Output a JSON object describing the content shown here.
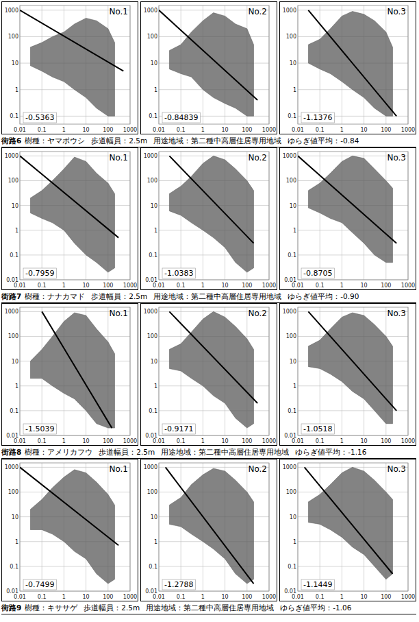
{
  "chart_data": [
    {
      "type": "line",
      "title": "No.1",
      "log": true,
      "grid": true,
      "xlim": [
        0.01,
        1000
      ],
      "ylim": [
        0.05,
        1500
      ],
      "xticks": [
        0.01,
        0.1,
        1,
        10,
        100,
        1000
      ],
      "yticks": [
        0.1,
        1,
        10,
        100,
        1000
      ],
      "spectrum": {
        "x": [
          0.03,
          0.1,
          0.3,
          1,
          3,
          10,
          30,
          100,
          200
        ],
        "upper": [
          40,
          60,
          100,
          150,
          300,
          500,
          400,
          200,
          60
        ],
        "lower": [
          8,
          5,
          3,
          2,
          1,
          0.5,
          0.2,
          0.1,
          0.1
        ],
        "color": "#5a5a5a"
      },
      "fit": {
        "x": [
          0.01,
          500
        ],
        "y": [
          1000,
          5
        ],
        "color": "#000000"
      },
      "slope": -0.5363
    },
    {
      "type": "line",
      "title": "No.2",
      "log": true,
      "grid": true,
      "xlim": [
        0.01,
        1000
      ],
      "ylim": [
        0.05,
        1500
      ],
      "xticks": [
        0.01,
        0.1,
        1,
        10,
        100,
        1000
      ],
      "yticks": [
        0.1,
        1,
        10,
        100,
        1000
      ],
      "spectrum": {
        "x": [
          0.03,
          0.1,
          0.3,
          1,
          3,
          10,
          30,
          100,
          200
        ],
        "upper": [
          30,
          50,
          150,
          400,
          800,
          600,
          300,
          200,
          50
        ],
        "lower": [
          6,
          4,
          3,
          1,
          0.5,
          0.3,
          0.2,
          0.1,
          0.1
        ],
        "color": "#5a5a5a"
      },
      "fit": {
        "x": [
          0.01,
          300
        ],
        "y": [
          1000,
          0.4
        ],
        "color": "#000000"
      },
      "slope": -0.84839
    },
    {
      "type": "line",
      "title": "No.3",
      "log": true,
      "grid": true,
      "xlim": [
        0.01,
        1000
      ],
      "ylim": [
        0.05,
        1500
      ],
      "xticks": [
        0.01,
        0.1,
        1,
        10,
        100,
        1000
      ],
      "yticks": [
        0.1,
        1,
        10,
        100,
        1000
      ],
      "spectrum": {
        "x": [
          0.03,
          0.1,
          0.3,
          1,
          3,
          10,
          30,
          100,
          200
        ],
        "upper": [
          50,
          80,
          200,
          600,
          900,
          700,
          400,
          150,
          40
        ],
        "lower": [
          10,
          6,
          4,
          2,
          1,
          0.5,
          0.2,
          0.1,
          0.1
        ],
        "color": "#5a5a5a"
      },
      "fit": {
        "x": [
          0.03,
          300
        ],
        "y": [
          1000,
          0.1
        ],
        "color": "#000000"
      },
      "slope": -1.1376
    },
    {
      "type": "line",
      "title": "No.1",
      "log": true,
      "grid": true,
      "xlim": [
        0.01,
        1000
      ],
      "ylim": [
        0.01,
        1500
      ],
      "xticks": [
        0.01,
        0.1,
        1,
        10,
        100,
        1000
      ],
      "yticks": [
        0.01,
        0.1,
        1,
        10,
        100,
        1000
      ],
      "spectrum": {
        "x": [
          0.03,
          0.1,
          0.3,
          1,
          3,
          10,
          30,
          100,
          200
        ],
        "upper": [
          20,
          40,
          100,
          300,
          900,
          600,
          200,
          80,
          30
        ],
        "lower": [
          5,
          3,
          2,
          1,
          0.3,
          0.1,
          0.05,
          0.02,
          0.03
        ],
        "color": "#5a5a5a"
      },
      "fit": {
        "x": [
          0.01,
          300
        ],
        "y": [
          1000,
          0.5
        ],
        "color": "#000000"
      },
      "slope": -0.7959
    },
    {
      "type": "line",
      "title": "No.2",
      "log": true,
      "grid": true,
      "xlim": [
        0.01,
        1000
      ],
      "ylim": [
        0.01,
        1500
      ],
      "xticks": [
        0.01,
        0.1,
        1,
        10,
        100,
        1000
      ],
      "yticks": [
        0.01,
        0.1,
        1,
        10,
        100,
        1000
      ],
      "spectrum": {
        "x": [
          0.03,
          0.1,
          0.3,
          1,
          3,
          10,
          30,
          100,
          200
        ],
        "upper": [
          30,
          60,
          150,
          500,
          1000,
          700,
          300,
          100,
          40
        ],
        "lower": [
          6,
          4,
          2,
          1,
          0.5,
          0.2,
          0.05,
          0.02,
          0.03
        ],
        "color": "#5a5a5a"
      },
      "fit": {
        "x": [
          0.03,
          200
        ],
        "y": [
          1000,
          0.3
        ],
        "color": "#000000"
      },
      "slope": -1.0383
    },
    {
      "type": "line",
      "title": "No.3",
      "log": true,
      "grid": true,
      "xlim": [
        0.01,
        1000
      ],
      "ylim": [
        0.01,
        1500
      ],
      "xticks": [
        0.01,
        0.1,
        1,
        10,
        100,
        1000
      ],
      "yticks": [
        0.01,
        0.1,
        1,
        10,
        100,
        1000
      ],
      "spectrum": {
        "x": [
          0.03,
          0.1,
          0.3,
          1,
          3,
          10,
          30,
          100,
          200
        ],
        "upper": [
          40,
          80,
          200,
          600,
          1000,
          800,
          300,
          100,
          50
        ],
        "lower": [
          8,
          5,
          3,
          2,
          0.8,
          0.3,
          0.1,
          0.05,
          0.05
        ],
        "color": "#5a5a5a"
      },
      "fit": {
        "x": [
          0.01,
          300
        ],
        "y": [
          1000,
          0.3
        ],
        "color": "#000000"
      },
      "slope": -0.8705
    },
    {
      "type": "line",
      "title": "No.1",
      "log": true,
      "grid": true,
      "xlim": [
        0.01,
        1000
      ],
      "ylim": [
        0.01,
        1500
      ],
      "xticks": [
        0.01,
        0.1,
        1,
        10,
        100,
        1000
      ],
      "yticks": [
        0.01,
        0.1,
        1,
        10,
        100,
        1000
      ],
      "spectrum": {
        "x": [
          0.03,
          0.1,
          0.3,
          1,
          3,
          10,
          30,
          100,
          200
        ],
        "upper": [
          10,
          30,
          100,
          400,
          900,
          700,
          200,
          60,
          20
        ],
        "lower": [
          2,
          2,
          1,
          0.5,
          0.3,
          0.1,
          0.03,
          0.02,
          0.02
        ],
        "color": "#5a5a5a"
      },
      "fit": {
        "x": [
          0.1,
          150
        ],
        "y": [
          1000,
          0.02
        ],
        "color": "#000000"
      },
      "slope": -1.5039
    },
    {
      "type": "line",
      "title": "No.2",
      "log": true,
      "grid": true,
      "xlim": [
        0.01,
        1000
      ],
      "ylim": [
        0.01,
        1500
      ],
      "xticks": [
        0.01,
        0.1,
        1,
        10,
        100,
        1000
      ],
      "yticks": [
        0.01,
        0.1,
        1,
        10,
        100,
        1000
      ],
      "spectrum": {
        "x": [
          0.03,
          0.1,
          0.3,
          1,
          3,
          10,
          30,
          100,
          200
        ],
        "upper": [
          30,
          50,
          150,
          500,
          1000,
          600,
          250,
          80,
          30
        ],
        "lower": [
          5,
          4,
          2,
          1,
          0.4,
          0.2,
          0.05,
          0.02,
          0.03
        ],
        "color": "#5a5a5a"
      },
      "fit": {
        "x": [
          0.03,
          300
        ],
        "y": [
          1000,
          0.2
        ],
        "color": "#000000"
      },
      "slope": -0.9171
    },
    {
      "type": "line",
      "title": "No.3",
      "log": true,
      "grid": true,
      "xlim": [
        0.01,
        1000
      ],
      "ylim": [
        0.01,
        1500
      ],
      "xticks": [
        0.01,
        0.1,
        1,
        10,
        100,
        1000
      ],
      "yticks": [
        0.01,
        0.1,
        1,
        10,
        100,
        1000
      ],
      "spectrum": {
        "x": [
          0.03,
          0.1,
          0.3,
          1,
          3,
          10,
          30,
          100,
          200
        ],
        "upper": [
          40,
          70,
          200,
          600,
          900,
          700,
          300,
          100,
          40
        ],
        "lower": [
          6,
          5,
          3,
          1.5,
          0.6,
          0.3,
          0.1,
          0.03,
          0.03
        ],
        "color": "#5a5a5a"
      },
      "fit": {
        "x": [
          0.03,
          300
        ],
        "y": [
          1000,
          0.1
        ],
        "color": "#000000"
      },
      "slope": -1.0518
    },
    {
      "type": "line",
      "title": "No.1",
      "log": true,
      "grid": true,
      "xlim": [
        0.01,
        1000
      ],
      "ylim": [
        0.01,
        1500
      ],
      "xticks": [
        0.01,
        0.1,
        1,
        10,
        100,
        1000
      ],
      "yticks": [
        0.01,
        0.1,
        1,
        10,
        100,
        1000
      ],
      "spectrum": {
        "x": [
          0.03,
          0.1,
          0.3,
          1,
          3,
          10,
          30,
          100,
          200
        ],
        "upper": [
          20,
          50,
          150,
          400,
          800,
          600,
          250,
          80,
          30
        ],
        "lower": [
          3,
          3,
          2,
          1,
          0.4,
          0.2,
          0.05,
          0.02,
          0.03
        ],
        "color": "#5a5a5a"
      },
      "fit": {
        "x": [
          0.01,
          300
        ],
        "y": [
          1000,
          0.7
        ],
        "color": "#000000"
      },
      "slope": -0.7499
    },
    {
      "type": "line",
      "title": "No.2",
      "log": true,
      "grid": true,
      "xlim": [
        0.01,
        1000
      ],
      "ylim": [
        0.01,
        1500
      ],
      "xticks": [
        0.01,
        0.1,
        1,
        10,
        100,
        1000
      ],
      "yticks": [
        0.01,
        0.1,
        1,
        10,
        100,
        1000
      ],
      "spectrum": {
        "x": [
          0.03,
          0.1,
          0.3,
          1,
          3,
          10,
          30,
          100,
          200
        ],
        "upper": [
          30,
          60,
          200,
          500,
          900,
          700,
          300,
          100,
          40
        ],
        "lower": [
          5,
          4,
          2,
          1,
          0.5,
          0.2,
          0.05,
          0.02,
          0.03
        ],
        "color": "#5a5a5a"
      },
      "fit": {
        "x": [
          0.02,
          200
        ],
        "y": [
          1000,
          0.02
        ],
        "color": "#000000"
      },
      "slope": -1.2788
    },
    {
      "type": "line",
      "title": "No.3",
      "log": true,
      "grid": true,
      "xlim": [
        0.01,
        1000
      ],
      "ylim": [
        0.01,
        1500
      ],
      "xticks": [
        0.01,
        0.1,
        1,
        10,
        100,
        1000
      ],
      "yticks": [
        0.01,
        0.1,
        1,
        10,
        100,
        1000
      ],
      "spectrum": {
        "x": [
          0.03,
          0.1,
          0.3,
          1,
          3,
          10,
          30,
          100,
          200
        ],
        "upper": [
          40,
          80,
          200,
          600,
          1000,
          700,
          300,
          100,
          50
        ],
        "lower": [
          6,
          5,
          3,
          1.5,
          0.6,
          0.3,
          0.1,
          0.03,
          0.05
        ],
        "color": "#5a5a5a"
      },
      "fit": {
        "x": [
          0.02,
          200
        ],
        "y": [
          1000,
          0.05
        ],
        "color": "#000000"
      },
      "slope": -1.1449
    }
  ],
  "captions": [
    {
      "street": "街路6",
      "tree": "樹種：ヤマボウシ",
      "width": "歩道幅員：2.5m",
      "zone": "用途地域：第二種中高層住居専用地域",
      "average": "ゆらぎ値平均：-0.84"
    },
    {
      "street": "街路7",
      "tree": "樹種：ナナカマド",
      "width": "歩道幅員：2.5m",
      "zone": "用途地域：第二種中高層住居専用地域",
      "average": "ゆらぎ値平均：-0.90"
    },
    {
      "street": "街路8",
      "tree": "樹種：アメリカフウ",
      "width": "歩道幅員：2.5m",
      "zone": "用途地域：第二種中高層住居専用地域",
      "average": "ゆらぎ値平均：-1.16"
    },
    {
      "street": "街路9",
      "tree": "樹種：キササゲ",
      "width": "歩道幅員：2.5m",
      "zone": "用途地域：第二種中高層住居専用地域",
      "average": "ゆらぎ値平均：-1.06"
    }
  ]
}
